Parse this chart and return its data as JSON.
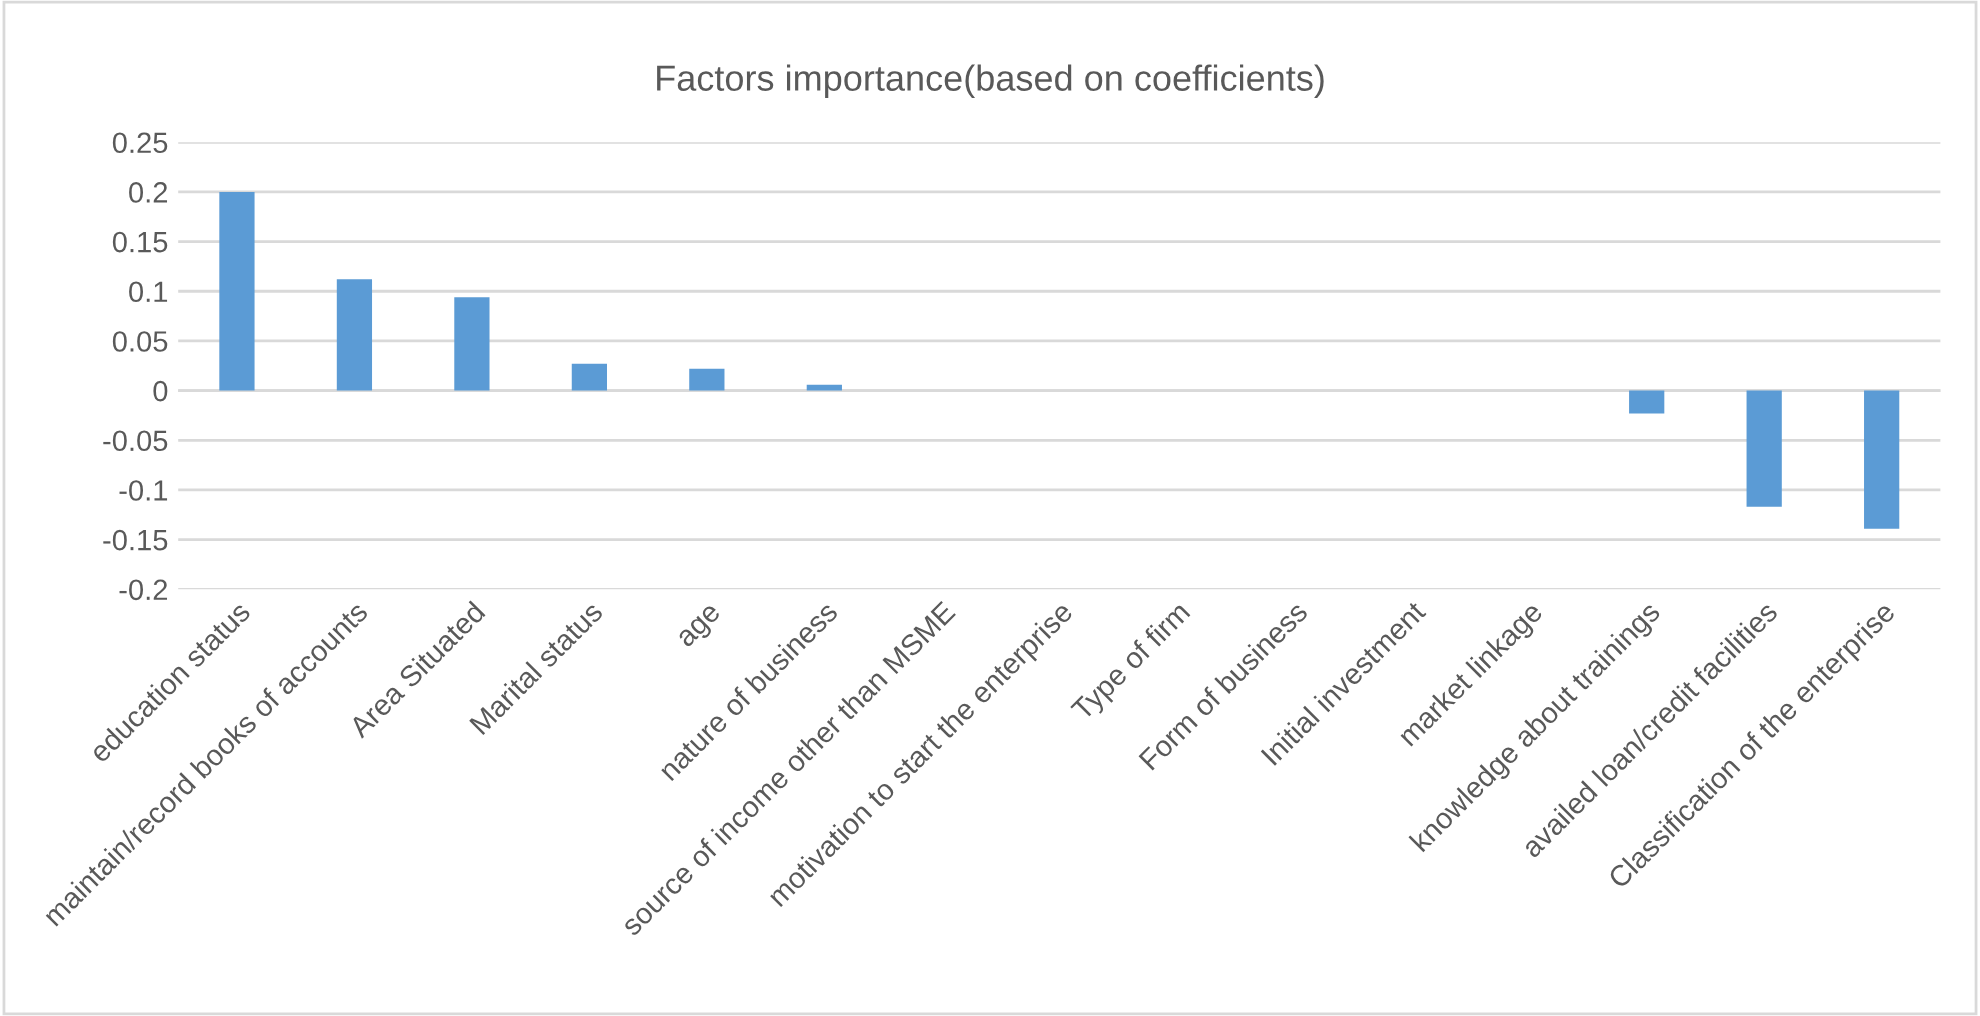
{
  "chart_data": {
    "type": "bar",
    "title": "Factors importance(based on coefficients)",
    "categories": [
      "education status",
      "maintain/record books of accounts",
      "Area Situated",
      "Marital status",
      "age",
      "nature of business",
      "source of income other than MSME",
      "motivation to start the enterprise",
      "Type of firm",
      "Form of business",
      "Initial investment",
      "market linkage",
      "knowledge about trainings",
      "availed loan/credit facilities",
      "Classification of the enterprise"
    ],
    "values": [
      0.2,
      0.112,
      0.094,
      0.027,
      0.022,
      0.006,
      0,
      0,
      0,
      0,
      0,
      0,
      -0.023,
      -0.117,
      -0.139
    ],
    "color": "#5b9bd5",
    "ylim": [
      -0.2,
      0.25
    ],
    "yticks": [
      -0.2,
      -0.15,
      -0.1,
      -0.05,
      0,
      0.05,
      0.1,
      0.15,
      0.2,
      0.25
    ],
    "grid": "y",
    "legend": false
  }
}
